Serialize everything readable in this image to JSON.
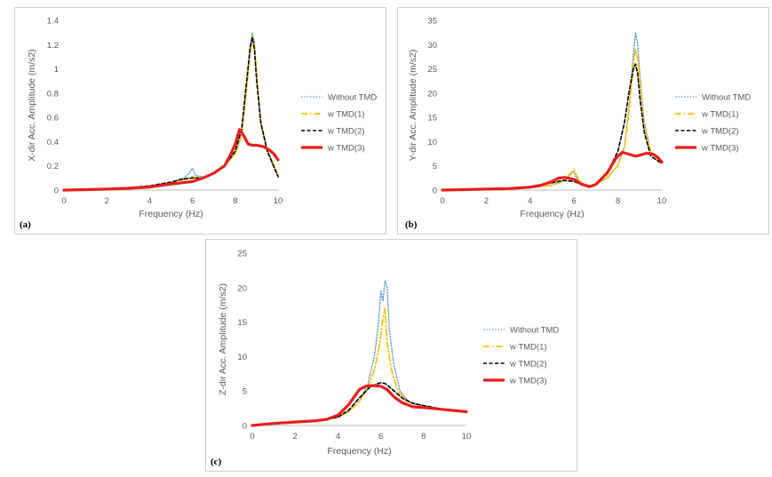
{
  "chart_data": [
    {
      "type": "line",
      "panel_label": "(a)",
      "xlabel": "Frequency (Hz)",
      "ylabel": "X-dir Acc. Amplitude (m/s2)",
      "xlim": [
        0,
        10
      ],
      "ylim": [
        0,
        1.4
      ],
      "xticks": [
        "0",
        "2",
        "4",
        "6",
        "8",
        "10"
      ],
      "yticks": [
        "0",
        "0.2",
        "0.4",
        "0.6",
        "0.8",
        "1",
        "1.2",
        "1.4"
      ],
      "ytick_values": [
        0,
        0.2,
        0.4,
        0.6,
        0.8,
        1,
        1.2,
        1.4
      ],
      "xtick_values": [
        0,
        2,
        4,
        6,
        8,
        10
      ],
      "legend_position": "right",
      "series": [
        {
          "name": "Without TMD",
          "color": "#5b9bd5",
          "style": "dotted",
          "x": [
            0,
            1,
            2,
            3,
            4,
            5,
            5.6,
            5.85,
            6.0,
            6.15,
            6.5,
            7,
            7.5,
            8,
            8.3,
            8.5,
            8.7,
            8.8,
            8.9,
            9.0,
            9.2,
            9.5,
            10
          ],
          "y": [
            0,
            0.005,
            0.01,
            0.02,
            0.03,
            0.06,
            0.1,
            0.14,
            0.18,
            0.12,
            0.11,
            0.14,
            0.2,
            0.3,
            0.45,
            0.8,
            1.2,
            1.3,
            1.22,
            0.95,
            0.55,
            0.33,
            0.12
          ]
        },
        {
          "name": "w TMD(1)",
          "color": "#ffc000",
          "style": "dashdot",
          "x": [
            0,
            1,
            2,
            3,
            4,
            5,
            5.7,
            6.0,
            6.3,
            6.5,
            7,
            7.5,
            8,
            8.3,
            8.5,
            8.7,
            8.8,
            8.9,
            9.0,
            9.2,
            9.5,
            10
          ],
          "y": [
            0,
            0.005,
            0.01,
            0.02,
            0.03,
            0.06,
            0.09,
            0.11,
            0.1,
            0.1,
            0.14,
            0.2,
            0.3,
            0.45,
            0.78,
            1.15,
            1.27,
            1.2,
            0.95,
            0.55,
            0.33,
            0.12
          ]
        },
        {
          "name": "w TMD(2)",
          "color": "#000000",
          "style": "dashed",
          "x": [
            0,
            1,
            2,
            3,
            4,
            5,
            5.5,
            6.0,
            6.5,
            7,
            7.5,
            8,
            8.3,
            8.5,
            8.7,
            8.8,
            8.9,
            9.0,
            9.2,
            9.5,
            10
          ],
          "y": [
            0,
            0.005,
            0.01,
            0.02,
            0.035,
            0.065,
            0.09,
            0.1,
            0.1,
            0.14,
            0.2,
            0.32,
            0.5,
            0.85,
            1.18,
            1.26,
            1.15,
            0.9,
            0.55,
            0.32,
            0.11
          ]
        },
        {
          "name": "w TMD(3)",
          "color": "#e61e1e",
          "style": "solid",
          "x": [
            0,
            1,
            2,
            3,
            4,
            5,
            5.5,
            6.0,
            6.5,
            7,
            7.5,
            7.8,
            8.0,
            8.2,
            8.4,
            8.6,
            8.8,
            9.0,
            9.3,
            9.6,
            9.8,
            10
          ],
          "y": [
            0,
            0.004,
            0.008,
            0.015,
            0.025,
            0.05,
            0.06,
            0.07,
            0.1,
            0.14,
            0.2,
            0.3,
            0.38,
            0.5,
            0.45,
            0.38,
            0.37,
            0.37,
            0.36,
            0.33,
            0.3,
            0.25
          ]
        }
      ]
    },
    {
      "type": "line",
      "panel_label": "(b)",
      "xlabel": "Frequency (Hz)",
      "ylabel": "Y-dir Acc. Amplitude (m/s2)",
      "xlim": [
        0,
        10
      ],
      "ylim": [
        0,
        35
      ],
      "xticks": [
        "0",
        "2",
        "4",
        "6",
        "8",
        "10"
      ],
      "yticks": [
        "0",
        "5",
        "10",
        "15",
        "20",
        "25",
        "30",
        "35"
      ],
      "ytick_values": [
        0,
        5,
        10,
        15,
        20,
        25,
        30,
        35
      ],
      "xtick_values": [
        0,
        2,
        4,
        6,
        8,
        10
      ],
      "legend_position": "right",
      "series": [
        {
          "name": "Without TMD",
          "color": "#5b9bd5",
          "style": "dotted",
          "x": [
            0,
            1,
            2,
            3,
            4,
            5,
            5.5,
            5.9,
            6.0,
            6.1,
            6.4,
            6.8,
            7.5,
            8,
            8.3,
            8.5,
            8.7,
            8.8,
            8.9,
            9.0,
            9.2,
            9.5,
            10
          ],
          "y": [
            0,
            0.1,
            0.2,
            0.3,
            0.5,
            1.0,
            1.8,
            3.5,
            3.8,
            2.5,
            1.0,
            0.8,
            2.5,
            5,
            9,
            17,
            28,
            32.5,
            30,
            24,
            14,
            8,
            5.5
          ]
        },
        {
          "name": "w TMD(1)",
          "color": "#ffc000",
          "style": "dashdot",
          "x": [
            0,
            1,
            2,
            3,
            4,
            5,
            5.5,
            5.9,
            6.0,
            6.1,
            6.4,
            6.8,
            7.5,
            8,
            8.3,
            8.5,
            8.7,
            8.8,
            8.9,
            9.0,
            9.2,
            9.5,
            10
          ],
          "y": [
            0,
            0.1,
            0.2,
            0.3,
            0.5,
            1.0,
            1.8,
            3.8,
            4.2,
            3.0,
            1.2,
            0.8,
            2.5,
            5,
            9,
            16,
            26,
            29,
            27,
            22,
            13,
            8,
            5.5
          ]
        },
        {
          "name": "w TMD(2)",
          "color": "#000000",
          "style": "dashed",
          "x": [
            0,
            1,
            2,
            3,
            4,
            5,
            5.5,
            6.0,
            6.5,
            7,
            7.5,
            8,
            8.3,
            8.5,
            8.7,
            8.8,
            8.9,
            9.0,
            9.2,
            9.5,
            10
          ],
          "y": [
            0,
            0.1,
            0.2,
            0.3,
            0.6,
            1.5,
            2.0,
            1.8,
            0.8,
            1.0,
            3.5,
            8,
            14,
            20,
            25,
            26,
            24,
            19,
            12,
            7,
            5.5
          ]
        },
        {
          "name": "w TMD(3)",
          "color": "#e61e1e",
          "style": "solid",
          "x": [
            0,
            1,
            2,
            3,
            4,
            4.5,
            5,
            5.3,
            5.6,
            6.0,
            6.3,
            6.7,
            7.0,
            7.5,
            7.9,
            8.2,
            8.5,
            8.8,
            9.0,
            9.3,
            9.6,
            9.8,
            10
          ],
          "y": [
            0,
            0.1,
            0.2,
            0.3,
            0.6,
            1.0,
            1.8,
            2.5,
            2.6,
            2.2,
            1.3,
            0.7,
            1.2,
            3.5,
            6.5,
            7.8,
            7.4,
            7.0,
            7.2,
            7.6,
            7.4,
            6.8,
            5.8
          ]
        }
      ]
    },
    {
      "type": "line",
      "panel_label": "(c)",
      "xlabel": "Frequency (Hz)",
      "ylabel": "Z-dir Acc. Amplitude (m/s2)",
      "xlim": [
        0,
        10
      ],
      "ylim": [
        0,
        25
      ],
      "xticks": [
        "0",
        "2",
        "4",
        "6",
        "8",
        "10"
      ],
      "yticks": [
        "0",
        "5",
        "10",
        "15",
        "20",
        "25"
      ],
      "ytick_values": [
        0,
        5,
        10,
        15,
        20,
        25
      ],
      "xtick_values": [
        0,
        2,
        4,
        6,
        8,
        10
      ],
      "legend_position": "right",
      "series": [
        {
          "name": "Without TMD",
          "color": "#5b9bd5",
          "style": "dotted",
          "x": [
            0,
            1,
            2,
            3,
            3.5,
            4,
            4.5,
            5,
            5.4,
            5.7,
            5.9,
            6.0,
            6.1,
            6.2,
            6.3,
            6.4,
            6.6,
            6.9,
            7.3,
            8,
            9,
            10
          ],
          "y": [
            0,
            0.3,
            0.5,
            0.7,
            0.9,
            1.2,
            2.0,
            3.5,
            6,
            10,
            15,
            19.5,
            18,
            21,
            20,
            14,
            9,
            5,
            3.5,
            2.8,
            2.3,
            2.0
          ]
        },
        {
          "name": "w TMD(1)",
          "color": "#ffc000",
          "style": "dashdot",
          "x": [
            0,
            1,
            2,
            3,
            3.5,
            4,
            4.5,
            5,
            5.4,
            5.7,
            5.9,
            6.0,
            6.1,
            6.2,
            6.3,
            6.5,
            6.8,
            7.2,
            8,
            9,
            10
          ],
          "y": [
            0,
            0.3,
            0.5,
            0.7,
            0.9,
            1.2,
            2.0,
            3.5,
            5.5,
            8,
            11,
            13,
            15.5,
            17,
            12,
            8,
            5,
            3.5,
            2.7,
            2.3,
            2.0
          ]
        },
        {
          "name": "w TMD(2)",
          "color": "#000000",
          "style": "dashed",
          "x": [
            0,
            1,
            2,
            3,
            3.5,
            4,
            4.5,
            5,
            5.5,
            5.8,
            6.0,
            6.2,
            6.4,
            6.7,
            7,
            7.5,
            8,
            9,
            10
          ],
          "y": [
            0,
            0.3,
            0.5,
            0.7,
            0.9,
            1.2,
            2.2,
            4.0,
            5.6,
            6.0,
            6.2,
            6.1,
            5.6,
            4.8,
            4.0,
            3.2,
            2.9,
            2.3,
            2.0
          ]
        },
        {
          "name": "w TMD(3)",
          "color": "#e61e1e",
          "style": "solid",
          "x": [
            0,
            1,
            2,
            3,
            3.5,
            4,
            4.5,
            5,
            5.3,
            5.6,
            6.0,
            6.3,
            6.6,
            7,
            7.5,
            8,
            9,
            10
          ],
          "y": [
            0,
            0.3,
            0.5,
            0.7,
            0.9,
            1.5,
            3.0,
            5.2,
            5.7,
            5.8,
            5.7,
            5.2,
            4.2,
            3.3,
            2.7,
            2.6,
            2.3,
            2.0
          ]
        }
      ]
    }
  ]
}
